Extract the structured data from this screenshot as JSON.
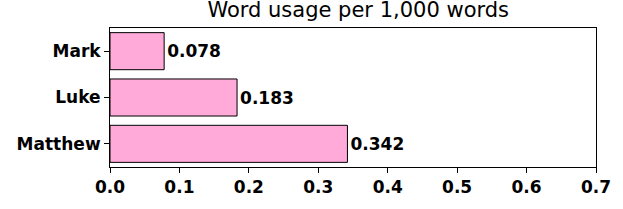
{
  "chart_data": {
    "type": "bar",
    "orientation": "horizontal",
    "title": "Word usage per 1,000 words",
    "categories": [
      "Mark",
      "Luke",
      "Matthew"
    ],
    "values": [
      0.078,
      0.183,
      0.342
    ],
    "color": "#ffaad9",
    "xlim": [
      0,
      0.7
    ],
    "xticks": [
      {
        "value": 0,
        "label": "0.0"
      },
      0.1,
      0.2,
      0.3,
      0.4,
      0.5,
      0.6,
      0.7
    ],
    "grid": false,
    "data_labels": true
  }
}
